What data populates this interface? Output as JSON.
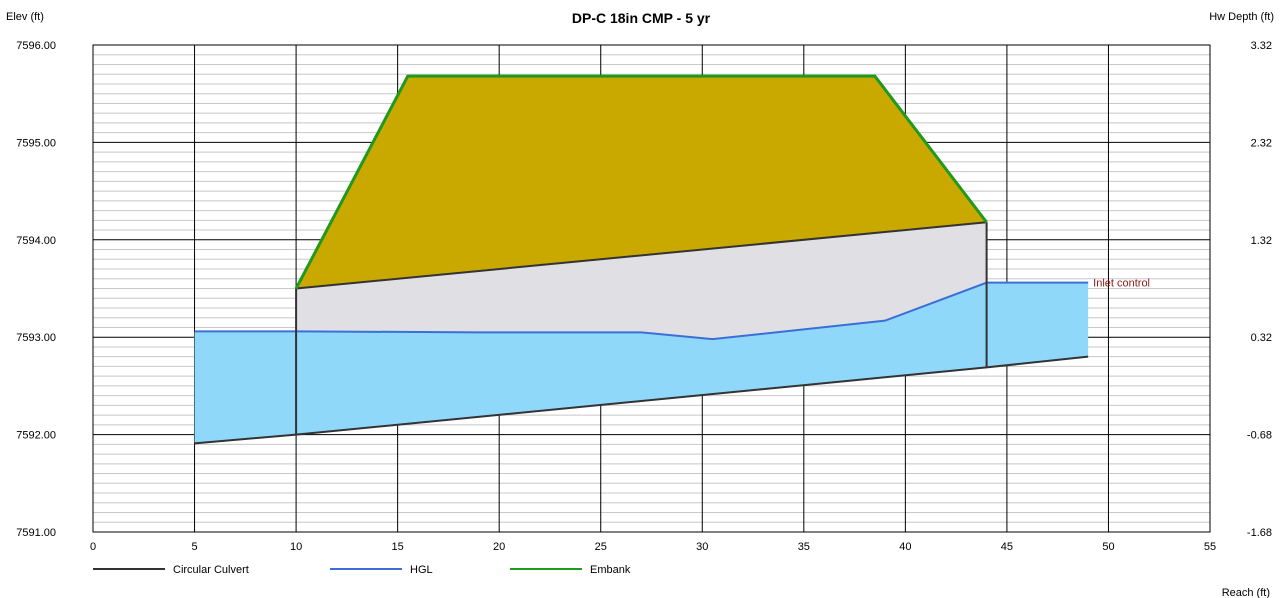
{
  "chart_data": {
    "type": "area",
    "title": "DP-C 18in CMP - 5 yr",
    "ylabel_left": "Elev (ft)",
    "ylabel_right": "Hw Depth (ft)",
    "xlabel": "Reach (ft)",
    "xlim": [
      0,
      55
    ],
    "ylim": [
      7591.0,
      7596.0
    ],
    "y2lim": [
      -1.68,
      3.32
    ],
    "x_ticks": [
      0,
      5,
      10,
      15,
      20,
      25,
      30,
      35,
      40,
      45,
      50,
      55
    ],
    "y_ticks": [
      "7591.00",
      "7592.00",
      "7593.00",
      "7594.00",
      "7595.00",
      "7596.00"
    ],
    "y2_ticks": [
      "-1.68",
      "-0.68",
      "0.32",
      "1.32",
      "2.32",
      "3.32"
    ],
    "grid": true,
    "legend_position": "bottom-left",
    "colors": {
      "culvert_line": "#333333",
      "culvert_fill": "#e0e0e4",
      "hgl_line": "#3a6fd8",
      "water_fill": "#90d8fa",
      "embank_line": "#1f9a1f",
      "embank_fill": "#c9a800",
      "annotation": "#8b1a1a"
    },
    "series": [
      {
        "name": "Circular Culvert",
        "invert": [
          [
            5,
            7591.91
          ],
          [
            10,
            7592.0
          ],
          [
            44,
            7592.69
          ],
          [
            49,
            7592.8
          ]
        ],
        "crown": [
          [
            10,
            7593.5
          ],
          [
            44,
            7594.18
          ]
        ]
      },
      {
        "name": "HGL",
        "values": [
          [
            5,
            7593.06
          ],
          [
            10,
            7593.06
          ],
          [
            19,
            7593.05
          ],
          [
            27,
            7593.05
          ],
          [
            30.5,
            7592.98
          ],
          [
            39,
            7593.17
          ],
          [
            44,
            7593.56
          ],
          [
            49,
            7593.56
          ]
        ]
      },
      {
        "name": "Embank",
        "values": [
          [
            10,
            7593.5
          ],
          [
            15.5,
            7595.68
          ],
          [
            38.5,
            7595.68
          ],
          [
            44,
            7594.18
          ]
        ]
      }
    ],
    "annotations": [
      {
        "text": "Inlet control",
        "x": 49,
        "y": 7593.56
      }
    ]
  }
}
